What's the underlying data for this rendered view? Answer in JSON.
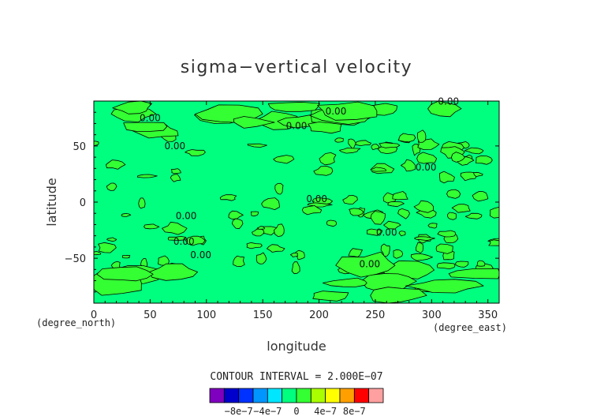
{
  "chart_data": {
    "type": "contour",
    "title": "sigma−vertical velocity",
    "xlabel": "longitude",
    "ylabel": "latitude",
    "x_unit": "(degree_east)",
    "y_unit": "(degree_north)",
    "xlim": [
      0,
      360
    ],
    "ylim": [
      -90,
      90
    ],
    "x_ticks": [
      "0",
      "50",
      "100",
      "150",
      "200",
      "250",
      "300",
      "350"
    ],
    "y_ticks": [
      "50",
      "0",
      "−50"
    ],
    "x_tick_values": [
      0,
      50,
      100,
      150,
      200,
      250,
      300,
      350
    ],
    "y_tick_values": [
      50,
      0,
      -50
    ],
    "contour_interval_text": "CONTOUR INTERVAL = 2.000E−07",
    "contour_level_label": "0.00",
    "contour_labels": [
      {
        "text": "0.00",
        "lon": 50,
        "lat": 72
      },
      {
        "text": "0.00",
        "lon": 72,
        "lat": 47
      },
      {
        "text": "0.00",
        "lon": 180,
        "lat": 65
      },
      {
        "text": "0.00",
        "lon": 215,
        "lat": 78
      },
      {
        "text": "0.00",
        "lon": 295,
        "lat": 28
      },
      {
        "text": "0.00",
        "lon": 315,
        "lat": 87
      },
      {
        "text": "0.00",
        "lon": 198,
        "lat": 0
      },
      {
        "text": "0.00",
        "lon": 82,
        "lat": -15
      },
      {
        "text": "0.00",
        "lon": 80,
        "lat": -38
      },
      {
        "text": "0.00",
        "lon": 95,
        "lat": -50
      },
      {
        "text": "0.00",
        "lon": 260,
        "lat": -30
      },
      {
        "text": "0.00",
        "lon": 245,
        "lat": -58
      }
    ],
    "colorbar": {
      "tick_labels": [
        "−8e−7",
        "−4e−7",
        "0",
        "4e−7",
        "8e−7"
      ],
      "tick_values": [
        -8e-07,
        -4e-07,
        0,
        4e-07,
        8e-07
      ],
      "levels": [
        -1.2e-06,
        -1e-06,
        -8e-07,
        -6e-07,
        -4e-07,
        -2e-07,
        0,
        2e-07,
        4e-07,
        6e-07,
        8e-07,
        1e-06,
        1.2e-06
      ],
      "colors": [
        "#7f00bf",
        "#0000cc",
        "#0032ff",
        "#0096ff",
        "#00e6ff",
        "#00ff7f",
        "#33ff33",
        "#aaff00",
        "#ffff00",
        "#ffa000",
        "#ff0000",
        "#ffa0a0"
      ]
    },
    "field_colors": {
      "negative": "#00ff7f",
      "positive": "#33ff33"
    }
  }
}
